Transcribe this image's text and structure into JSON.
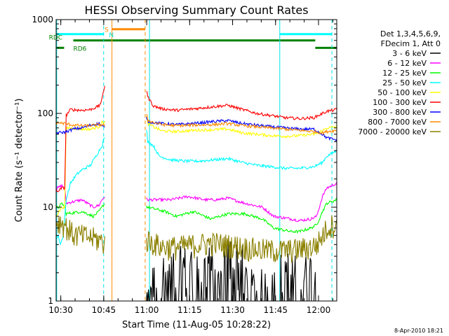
{
  "chart_data": {
    "type": "line",
    "title": "HESSI Observing Summary Count Rates",
    "xlabel": "Start Time (11-Aug-05 10:28:22)",
    "ylabel": "Count Rate (s⁻¹ detector⁻¹)",
    "footer": "8-Apr-2010 18:21",
    "x_unit": "minutes since 10:28:22",
    "xlim": [
      0,
      98
    ],
    "ylim": [
      1,
      1000
    ],
    "yscale": "log",
    "grid": false,
    "legend_position": "right",
    "legend_header": [
      "Det 1,3,4,5,6,9,",
      "FDecim 1, Att 0"
    ],
    "x_ticks": [
      {
        "value": 1.63,
        "label": "10:30"
      },
      {
        "value": 16.63,
        "label": "10:45"
      },
      {
        "value": 31.63,
        "label": "11:00"
      },
      {
        "value": 46.63,
        "label": "11:15"
      },
      {
        "value": 61.63,
        "label": "11:30"
      },
      {
        "value": 76.63,
        "label": "11:45"
      },
      {
        "value": 91.63,
        "label": "12:00"
      }
    ],
    "y_ticks": [
      {
        "value": 1,
        "label": "1"
      },
      {
        "value": 10,
        "label": "10"
      },
      {
        "value": 100,
        "label": "100"
      },
      {
        "value": 1000,
        "label": "1000"
      }
    ],
    "series": [
      {
        "name": "3 - 6 keV",
        "color": "#000000",
        "noise": 0.7,
        "values": [
          [
            0,
            0.95
          ],
          [
            21,
            0.95
          ],
          [
            23,
            0.95
          ],
          [
            27,
            2.5
          ],
          [
            28,
            3
          ],
          [
            29,
            2
          ],
          [
            30,
            2.5
          ],
          [
            31,
            1.6
          ],
          [
            33,
            1.4
          ],
          [
            38,
            2
          ],
          [
            44,
            2.3
          ],
          [
            50,
            2.3
          ],
          [
            54,
            3.3
          ],
          [
            56,
            1
          ],
          [
            60,
            3
          ],
          [
            64,
            2.8
          ],
          [
            68,
            1.3
          ],
          [
            74,
            1.3
          ],
          [
            80,
            2.2
          ],
          [
            84,
            1.8
          ],
          [
            89,
            2
          ],
          [
            91,
            1.3
          ],
          [
            92,
            0.95
          ],
          [
            95,
            0.95
          ],
          [
            98,
            0.95
          ]
        ],
        "segments": [
          [
            11.5,
            17.2
          ],
          [
            31.5,
            91.7
          ]
        ]
      },
      {
        "name": "6 - 12 keV",
        "color": "#ff00ff",
        "values": [
          [
            0,
            15
          ],
          [
            0.5,
            16
          ],
          [
            2,
            17
          ],
          [
            3,
            16
          ],
          [
            3.5,
            11
          ],
          [
            9,
            12
          ],
          [
            13,
            10
          ],
          [
            15,
            10.5
          ],
          [
            16,
            12
          ],
          [
            17,
            13
          ],
          [
            30,
            13
          ],
          [
            32,
            12
          ],
          [
            40,
            12
          ],
          [
            46,
            13
          ],
          [
            52,
            12
          ],
          [
            56,
            12
          ],
          [
            60,
            12.5
          ],
          [
            66,
            11
          ],
          [
            72,
            10
          ],
          [
            76,
            8
          ],
          [
            82,
            7.5
          ],
          [
            85,
            7.2
          ],
          [
            89,
            7.5
          ],
          [
            91,
            8
          ],
          [
            93,
            13
          ],
          [
            94.5,
            16
          ],
          [
            98,
            18
          ]
        ],
        "segments": [
          [
            0,
            17.2
          ],
          [
            31.5,
            98
          ]
        ]
      },
      {
        "name": "12 - 25 keV",
        "color": "#00ff00",
        "values": [
          [
            0,
            10
          ],
          [
            1,
            10
          ],
          [
            2,
            11
          ],
          [
            3,
            10
          ],
          [
            3.5,
            8.5
          ],
          [
            9,
            9
          ],
          [
            13,
            8
          ],
          [
            15,
            9
          ],
          [
            16,
            10
          ],
          [
            17,
            11
          ],
          [
            30,
            11
          ],
          [
            32,
            10
          ],
          [
            38,
            9
          ],
          [
            42,
            8
          ],
          [
            48,
            9
          ],
          [
            54,
            7.5
          ],
          [
            60,
            8.5
          ],
          [
            66,
            8.5
          ],
          [
            72,
            7.5
          ],
          [
            76,
            6
          ],
          [
            82,
            5.5
          ],
          [
            85,
            5.5
          ],
          [
            89,
            6
          ],
          [
            91,
            6.5
          ],
          [
            93,
            9
          ],
          [
            94.5,
            11
          ],
          [
            98,
            12
          ]
        ],
        "segments": [
          [
            0,
            17.2
          ],
          [
            31.5,
            98
          ]
        ]
      },
      {
        "name": "25 - 50 keV",
        "color": "#00ffff",
        "values": [
          [
            0,
            4.5
          ],
          [
            0.8,
            5
          ],
          [
            1.5,
            4
          ],
          [
            2.5,
            5
          ],
          [
            3.5,
            12
          ],
          [
            5,
            18
          ],
          [
            7,
            22
          ],
          [
            9,
            25
          ],
          [
            12,
            28
          ],
          [
            15,
            40
          ],
          [
            16,
            45
          ],
          [
            16.5,
            52
          ],
          [
            17,
            55
          ],
          [
            31.7,
            65
          ],
          [
            32,
            50
          ],
          [
            34,
            45
          ],
          [
            36,
            35
          ],
          [
            40,
            32
          ],
          [
            45,
            31
          ],
          [
            50,
            31
          ],
          [
            55,
            32
          ],
          [
            60,
            33
          ],
          [
            65,
            30
          ],
          [
            70,
            28
          ],
          [
            75,
            27
          ],
          [
            80,
            26
          ],
          [
            85,
            26
          ],
          [
            90,
            27
          ],
          [
            93,
            30
          ],
          [
            94.5,
            35
          ],
          [
            98,
            40
          ]
        ],
        "segments": [
          [
            0,
            17.2
          ],
          [
            31.5,
            98
          ]
        ]
      },
      {
        "name": "50 - 100 keV",
        "color": "#ffff00",
        "values": [
          [
            0,
            8
          ],
          [
            1,
            9
          ],
          [
            2,
            10
          ],
          [
            3,
            10
          ],
          [
            3.5,
            70
          ],
          [
            5,
            70
          ],
          [
            9,
            68
          ],
          [
            12,
            68
          ],
          [
            15,
            72
          ],
          [
            16,
            80
          ],
          [
            17,
            82
          ],
          [
            31.7,
            92
          ],
          [
            32,
            78
          ],
          [
            34,
            72
          ],
          [
            37,
            65
          ],
          [
            42,
            64
          ],
          [
            48,
            66
          ],
          [
            55,
            67
          ],
          [
            60,
            68
          ],
          [
            65,
            62
          ],
          [
            70,
            60
          ],
          [
            75,
            58
          ],
          [
            80,
            57
          ],
          [
            85,
            58
          ],
          [
            90,
            60
          ],
          [
            93,
            65
          ],
          [
            94.5,
            70
          ],
          [
            98,
            72
          ]
        ],
        "segments": [
          [
            0,
            17.2
          ],
          [
            31.5,
            98
          ]
        ]
      },
      {
        "name": "100 - 300 keV",
        "color": "#ff0000",
        "values": [
          [
            0,
            15
          ],
          [
            1,
            15
          ],
          [
            2,
            16
          ],
          [
            3,
            16
          ],
          [
            3.5,
            95
          ],
          [
            5,
            110
          ],
          [
            9,
            108
          ],
          [
            12,
            110
          ],
          [
            15,
            120
          ],
          [
            16,
            140
          ],
          [
            17,
            200
          ],
          [
            31.7,
            175
          ],
          [
            32,
            150
          ],
          [
            34,
            120
          ],
          [
            37,
            112
          ],
          [
            42,
            108
          ],
          [
            48,
            112
          ],
          [
            55,
            118
          ],
          [
            60,
            122
          ],
          [
            65,
            110
          ],
          [
            70,
            100
          ],
          [
            75,
            95
          ],
          [
            80,
            90
          ],
          [
            85,
            88
          ],
          [
            90,
            90
          ],
          [
            93,
            100
          ],
          [
            94.5,
            105
          ],
          [
            98,
            110
          ]
        ],
        "segments": [
          [
            0,
            17.2
          ],
          [
            31.5,
            98
          ]
        ]
      },
      {
        "name": "300 - 800 keV",
        "color": "#0000ff",
        "values": [
          [
            0,
            62
          ],
          [
            3,
            63
          ],
          [
            6,
            68
          ],
          [
            9,
            70
          ],
          [
            12,
            75
          ],
          [
            15,
            78
          ],
          [
            17,
            70
          ],
          [
            31.7,
            90
          ],
          [
            32,
            82
          ],
          [
            34,
            80
          ],
          [
            37,
            78
          ],
          [
            42,
            76
          ],
          [
            48,
            78
          ],
          [
            55,
            82
          ],
          [
            60,
            84
          ],
          [
            65,
            78
          ],
          [
            70,
            75
          ],
          [
            75,
            72
          ],
          [
            80,
            70
          ],
          [
            85,
            68
          ],
          [
            90,
            68
          ],
          [
            93,
            60
          ],
          [
            94.5,
            55
          ],
          [
            98,
            52
          ]
        ],
        "segments": [
          [
            0,
            17.2
          ],
          [
            31.5,
            98
          ]
        ]
      },
      {
        "name": "800 - 7000 keV",
        "color": "#ff8c00",
        "values": [
          [
            0,
            80
          ],
          [
            3,
            78
          ],
          [
            6,
            75
          ],
          [
            9,
            74
          ],
          [
            12,
            74
          ],
          [
            15,
            76
          ],
          [
            17,
            75
          ],
          [
            31.7,
            95
          ],
          [
            32,
            85
          ],
          [
            34,
            80
          ],
          [
            37,
            76
          ],
          [
            42,
            74
          ],
          [
            48,
            75
          ],
          [
            55,
            76
          ],
          [
            60,
            78
          ],
          [
            65,
            74
          ],
          [
            70,
            72
          ],
          [
            75,
            70
          ],
          [
            80,
            68
          ],
          [
            85,
            66
          ],
          [
            90,
            64
          ],
          [
            93,
            62
          ],
          [
            94.5,
            64
          ],
          [
            98,
            66
          ]
        ],
        "segments": [
          [
            0,
            17.2
          ],
          [
            31.5,
            98
          ]
        ]
      },
      {
        "name": "7000 - 20000 keV",
        "color": "#8b8000",
        "noise": 0.3,
        "values": [
          [
            0,
            7
          ],
          [
            2,
            7
          ],
          [
            3,
            6.5
          ],
          [
            6,
            5.2
          ],
          [
            9,
            5
          ],
          [
            12,
            4.8
          ],
          [
            15,
            4.5
          ],
          [
            17,
            4.2
          ],
          [
            31.7,
            4.5
          ],
          [
            34,
            4.2
          ],
          [
            37,
            3.8
          ],
          [
            42,
            3.8
          ],
          [
            48,
            4
          ],
          [
            55,
            4.2
          ],
          [
            60,
            4
          ],
          [
            65,
            3.8
          ],
          [
            70,
            3.6
          ],
          [
            75,
            3.5
          ],
          [
            80,
            3.5
          ],
          [
            85,
            3.6
          ],
          [
            89,
            3.8
          ],
          [
            91,
            4
          ],
          [
            93,
            5
          ],
          [
            94.5,
            6
          ],
          [
            98,
            7
          ]
        ],
        "segments": [
          [
            0,
            17.2
          ],
          [
            31.5,
            98
          ]
        ]
      }
    ],
    "markers": [
      {
        "x": 0.2,
        "style": "solid",
        "color": "#00e5e5"
      },
      {
        "x": 16.6,
        "style": "dashed",
        "color": "#00e5e5"
      },
      {
        "x": 19.5,
        "style": "solid",
        "color": "#ff8c00"
      },
      {
        "x": 31.1,
        "style": "dashed",
        "color": "#ff8c00"
      },
      {
        "x": 32.6,
        "style": "solid",
        "color": "#00e5e5"
      },
      {
        "x": 78.1,
        "style": "solid",
        "color": "#00e5e5"
      },
      {
        "x": 96.3,
        "style": "dashed",
        "color": "#00e5e5"
      }
    ],
    "annotations": [
      {
        "text": "RDC",
        "color": "#008000"
      },
      {
        "text": "RD6",
        "color": "#008000"
      },
      {
        "text": "S",
        "color": "#ff8c00"
      },
      {
        "text": "N",
        "color": "#00e5e5"
      }
    ],
    "bars": [
      {
        "y": 700,
        "x0": 0.3,
        "x1": 16.6,
        "color": "#00ffff"
      },
      {
        "y": 700,
        "x0": 78.1,
        "x1": 96.3,
        "color": "#00ffff"
      },
      {
        "y": 790,
        "x0": 19.5,
        "x1": 31.1,
        "color": "#ff8c00"
      },
      {
        "y": 600,
        "x0": 6,
        "x1": 90.5,
        "color": "#008000"
      },
      {
        "y": 500,
        "x0": 0,
        "x1": 2.8,
        "color": "#008000"
      },
      {
        "y": 500,
        "x0": 90.5,
        "x1": 98,
        "color": "#008000"
      }
    ]
  }
}
